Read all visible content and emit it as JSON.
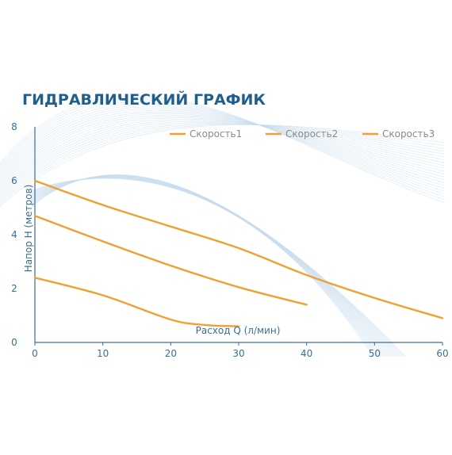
{
  "chart_data": {
    "type": "line",
    "title": "ГИДРАВЛИЧЕСКИЙ ГРАФИК",
    "xlabel": "Расход Q (л/мин)",
    "ylabel": "Напор H (метров)",
    "xlim": [
      0,
      60
    ],
    "ylim": [
      0,
      8
    ],
    "xticks": [
      0,
      10,
      20,
      30,
      40,
      50,
      60
    ],
    "yticks": [
      0,
      2,
      4,
      6,
      8
    ],
    "grid": false,
    "legend_position": "top-right",
    "series": [
      {
        "name": "Скорость1",
        "color": "#f0a033",
        "points": [
          [
            0,
            6.0
          ],
          [
            10,
            5.1
          ],
          [
            20,
            4.3
          ],
          [
            30,
            3.5
          ],
          [
            40,
            2.5
          ],
          [
            50,
            1.65
          ],
          [
            60,
            0.9
          ]
        ]
      },
      {
        "name": "Скорость2",
        "color": "#f0a033",
        "points": [
          [
            0,
            4.7
          ],
          [
            10,
            3.75
          ],
          [
            20,
            2.85
          ],
          [
            30,
            2.05
          ],
          [
            40,
            1.4
          ]
        ]
      },
      {
        "name": "Скорость3",
        "color": "#f0a033",
        "points": [
          [
            0,
            2.4
          ],
          [
            10,
            1.75
          ],
          [
            20,
            0.85
          ],
          [
            25,
            0.65
          ],
          [
            30,
            0.6
          ]
        ]
      }
    ]
  },
  "colors": {
    "title": "#1f5f8b",
    "axis": "#3a6f95",
    "tick_label": "#3a6f95",
    "background_lines": "#c9dcec"
  }
}
